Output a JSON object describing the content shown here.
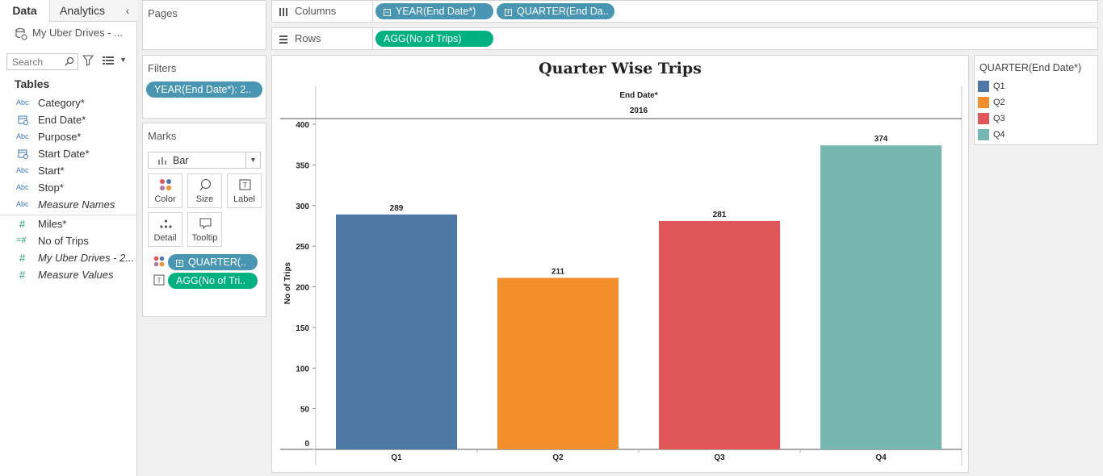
{
  "left_pane": {
    "tabs": [
      "Data",
      "Analytics"
    ],
    "datasource": "My Uber Drives - ...",
    "search_placeholder": "Search",
    "tables_title": "Tables",
    "dimensions": [
      {
        "type": "Abc",
        "name": "Category*",
        "italic": false
      },
      {
        "type": "date",
        "name": "End Date*",
        "italic": false
      },
      {
        "type": "Abc",
        "name": "Purpose*",
        "italic": false
      },
      {
        "type": "date",
        "name": "Start Date*",
        "italic": false
      },
      {
        "type": "Abc",
        "name": "Start*",
        "italic": false
      },
      {
        "type": "Abc",
        "name": "Stop*",
        "italic": false
      },
      {
        "type": "Abc",
        "name": "Measure Names",
        "italic": true
      }
    ],
    "measures": [
      {
        "type": "#",
        "name": "Miles*",
        "italic": false
      },
      {
        "type": "=#",
        "name": "No of Trips",
        "italic": false
      },
      {
        "type": "#",
        "name": "My Uber Drives - 2...",
        "italic": true
      },
      {
        "type": "#",
        "name": "Measure Values",
        "italic": true
      }
    ]
  },
  "cards": {
    "pages_title": "Pages",
    "filters_title": "Filters",
    "filter_pill": "YEAR(End Date*): 2..",
    "marks_title": "Marks",
    "mark_type": "Bar",
    "mark_buttons": [
      "Color",
      "Size",
      "Label",
      "Detail",
      "Tooltip"
    ],
    "mark_fields": [
      {
        "kind": "color",
        "label": "QUARTER(..",
        "plus": "+"
      },
      {
        "kind": "label",
        "label": "AGG(No of Tri..",
        "plus": ""
      }
    ]
  },
  "shelves": {
    "columns_label": "Columns",
    "columns_pills": [
      "YEAR(End Date*)",
      "QUARTER(End Da.."
    ],
    "rows_label": "Rows",
    "rows_pills": [
      "AGG(No of Trips)"
    ]
  },
  "legend": {
    "title": "QUARTER(End Date*)",
    "items": [
      {
        "label": "Q1",
        "color": "#4e79a7"
      },
      {
        "label": "Q2",
        "color": "#f28e2b"
      },
      {
        "label": "Q3",
        "color": "#e15759"
      },
      {
        "label": "Q4",
        "color": "#76b7b2"
      }
    ]
  },
  "chart_data": {
    "type": "bar",
    "title": "Quarter Wise Trips",
    "column_header_title": "End Date*",
    "column_header_value": "2016",
    "categories": [
      "Q1",
      "Q2",
      "Q3",
      "Q4"
    ],
    "values": [
      289,
      211,
      281,
      374
    ],
    "colors": [
      "#4e79a7",
      "#f28e2b",
      "#e15759",
      "#76b7b2"
    ],
    "ylabel": "No of Trips",
    "ylim": [
      0,
      400
    ],
    "yticks": [
      0,
      50,
      100,
      150,
      200,
      250,
      300,
      350,
      400
    ]
  }
}
